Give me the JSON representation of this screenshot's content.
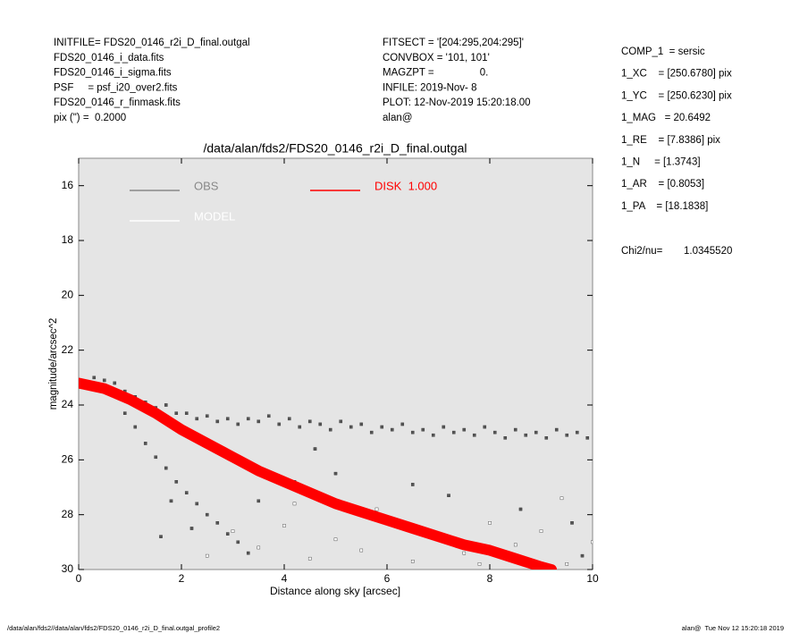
{
  "header_left": [
    "INITFILE= FDS20_0146_r2i_D_final.outgal",
    "FDS20_0146_i_data.fits",
    "FDS20_0146_i_sigma.fits",
    "PSF     = psf_i20_over2.fits",
    "FDS20_0146_r_finmask.fits",
    "pix (\") =  0.2000"
  ],
  "header_mid": [
    "FITSECT = '[204:295,204:295]'",
    "CONVBOX = '101, 101'",
    "MAGZPT =                0.",
    "INFILE: 2019-Nov- 8",
    "PLOT: 12-Nov-2019 15:20:18.00",
    "alan@"
  ],
  "params": [
    "COMP_1  = sersic",
    "1_XC    = [250.6780] pix",
    "1_YC    = [250.6230] pix",
    "1_MAG   = 20.6492",
    "1_RE    = [7.8386] pix",
    "1_N     = [1.3743]",
    "1_AR    = [0.8053]",
    "1_PA    = [18.1838]"
  ],
  "chi2": {
    "label": "Chi2/nu=",
    "value": "1.0345520"
  },
  "footer_left": "/data/alan/fds2//data/alan/fds2/FDS20_0146_r2i_D_final.outgal_profile2",
  "footer_right": "alan@  Tue Nov 12 15:20:18 2019",
  "chart_data": {
    "type": "scatter",
    "title": "/data/alan/fds2/FDS20_0146_r2i_D_final.outgal",
    "x_label": "Distance along sky [arcsec]",
    "y_label": "magnitude/arcsec^2",
    "xlim": [
      0,
      10
    ],
    "xticks": [
      0,
      2,
      4,
      6,
      8,
      10
    ],
    "ylim": [
      15,
      30
    ],
    "y_inverted": true,
    "yticks": [
      16,
      18,
      20,
      22,
      24,
      26,
      28,
      30
    ],
    "series": [
      {
        "name": "OBS",
        "color": "#555555",
        "style": "points",
        "x": [
          0.1,
          0.3,
          0.5,
          0.7,
          0.9,
          1.1,
          1.3,
          1.5,
          1.7,
          1.9,
          2.1,
          2.3,
          2.5,
          2.7,
          2.9,
          3.1,
          3.3,
          3.5,
          3.7,
          3.9,
          4.1,
          4.3,
          4.5,
          4.7,
          4.9,
          5.1,
          5.3,
          5.5,
          5.7,
          5.9,
          6.1,
          6.3,
          6.5,
          6.7,
          6.9,
          7.1,
          7.3,
          7.5,
          7.7,
          7.9,
          8.1,
          8.3,
          8.5,
          8.7,
          8.9,
          9.1,
          9.3,
          9.5,
          9.7,
          9.9,
          0.9,
          1.1,
          1.3,
          1.5,
          1.7,
          1.9,
          2.1,
          2.3,
          2.5,
          2.7,
          2.9,
          3.1,
          3.3,
          2.2,
          1.8,
          1.6,
          3.5,
          4.2,
          5.0,
          6.5,
          7.2,
          8.6,
          9.6,
          9.8,
          3.0,
          4.6
        ],
        "values": [
          23.3,
          23.0,
          23.1,
          23.2,
          23.5,
          23.7,
          23.9,
          24.1,
          24.0,
          24.3,
          24.3,
          24.5,
          24.4,
          24.6,
          24.5,
          24.7,
          24.5,
          24.6,
          24.4,
          24.7,
          24.5,
          24.8,
          24.6,
          24.7,
          24.9,
          24.6,
          24.8,
          24.7,
          25.0,
          24.8,
          24.9,
          24.7,
          25.0,
          24.9,
          25.1,
          24.8,
          25.0,
          24.9,
          25.1,
          24.8,
          25.0,
          25.2,
          24.9,
          25.1,
          25.0,
          25.2,
          24.9,
          25.1,
          25.0,
          25.2,
          24.3,
          24.8,
          25.4,
          25.9,
          26.3,
          26.8,
          27.2,
          27.6,
          28.0,
          28.3,
          28.7,
          29.0,
          29.4,
          28.5,
          27.5,
          28.8,
          27.5,
          26.8,
          26.5,
          26.9,
          27.3,
          27.8,
          28.3,
          29.5,
          26.0,
          25.6
        ]
      },
      {
        "name": "MODEL",
        "color": "#ffffff",
        "style": "points",
        "x": [
          2.5,
          3,
          3.5,
          4,
          4.5,
          5,
          5.5,
          6,
          6.5,
          7,
          7.5,
          8,
          8.5,
          9,
          9.5,
          10,
          4.2,
          5.8,
          7.8,
          9.4
        ],
        "values": [
          29.5,
          28.6,
          29.2,
          28.4,
          29.6,
          28.9,
          29.3,
          28.2,
          29.7,
          28.7,
          29.4,
          28.3,
          29.1,
          28.6,
          29.8,
          29.0,
          27.6,
          27.8,
          29.8,
          27.4
        ]
      },
      {
        "name": "DISK  1.000",
        "color": "#ff0000",
        "style": "band",
        "x": [
          0,
          0.5,
          1,
          1.5,
          2,
          2.5,
          3,
          3.5,
          4,
          4.5,
          5,
          5.5,
          6,
          6.5,
          7,
          7.5,
          8,
          8.5,
          9,
          9.2
        ],
        "values": [
          23.2,
          23.4,
          23.8,
          24.3,
          24.9,
          25.4,
          25.9,
          26.4,
          26.8,
          27.2,
          27.6,
          27.9,
          28.2,
          28.5,
          28.8,
          29.1,
          29.3,
          29.6,
          29.9,
          30
        ]
      }
    ]
  }
}
